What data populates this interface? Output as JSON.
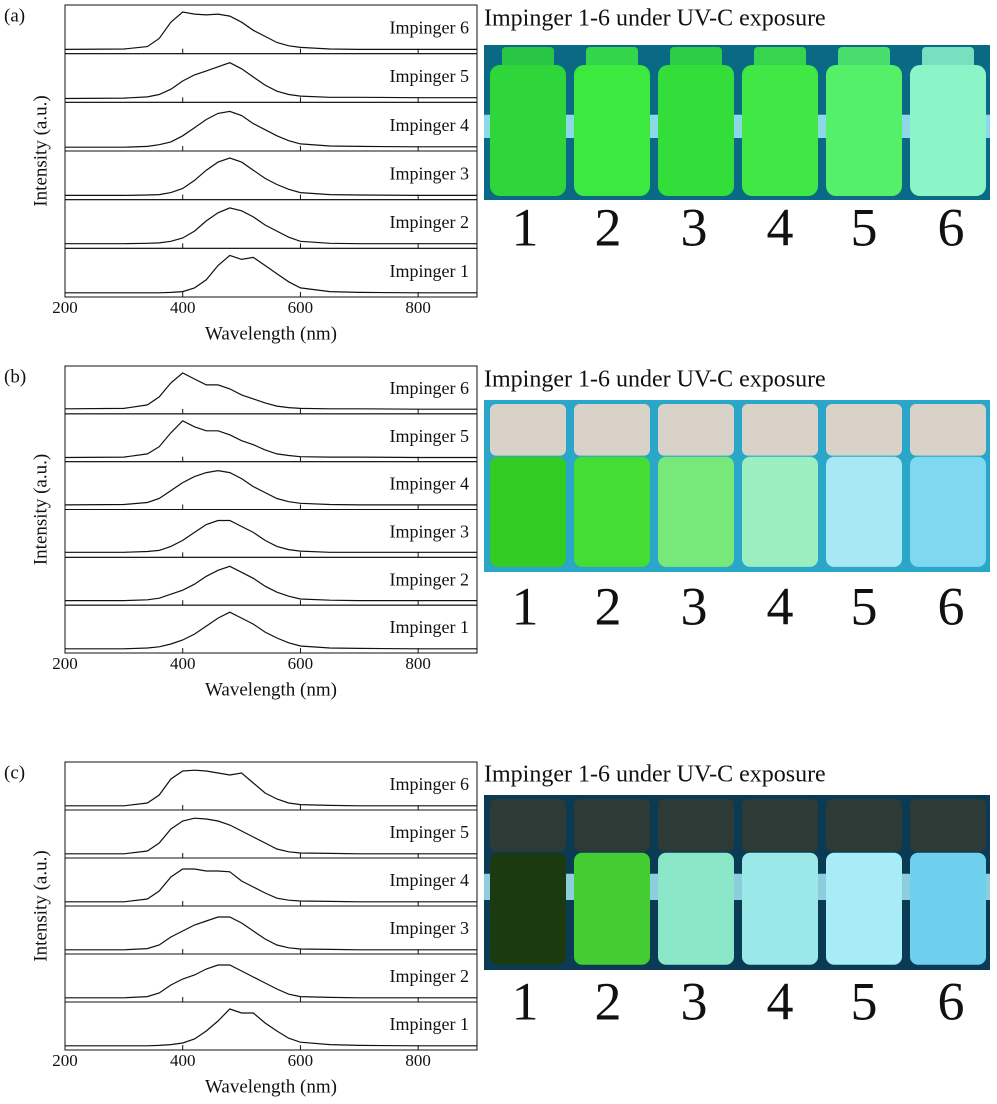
{
  "chart_data": [
    {
      "type": "line",
      "panel_label": "(a)",
      "xlabel": "Wavelength (nm)",
      "ylabel": "Intensity (a.u.)",
      "xlim": [
        200,
        900
      ],
      "xticks": [
        200,
        400,
        600,
        800
      ],
      "ylim": [
        0,
        1
      ],
      "x": [
        200,
        300,
        340,
        360,
        380,
        400,
        420,
        440,
        460,
        480,
        500,
        520,
        540,
        560,
        580,
        600,
        650,
        700,
        800,
        900
      ],
      "series": [
        {
          "name": "Impinger 1",
          "color": "#111111",
          "values": [
            0.03,
            0.03,
            0.03,
            0.03,
            0.04,
            0.06,
            0.15,
            0.35,
            0.7,
            0.95,
            0.85,
            0.9,
            0.7,
            0.5,
            0.3,
            0.15,
            0.06,
            0.04,
            0.03,
            0.03
          ]
        },
        {
          "name": "Impinger 2",
          "color": "#111111",
          "values": [
            0.04,
            0.04,
            0.05,
            0.06,
            0.1,
            0.18,
            0.35,
            0.6,
            0.8,
            0.92,
            0.85,
            0.7,
            0.5,
            0.35,
            0.2,
            0.1,
            0.05,
            0.04,
            0.04,
            0.04
          ]
        },
        {
          "name": "Impinger 3",
          "color": "#111111",
          "values": [
            0.03,
            0.03,
            0.04,
            0.05,
            0.1,
            0.2,
            0.4,
            0.65,
            0.85,
            0.95,
            0.85,
            0.65,
            0.45,
            0.3,
            0.18,
            0.1,
            0.05,
            0.04,
            0.03,
            0.03
          ]
        },
        {
          "name": "Impinger 4",
          "color": "#111111",
          "values": [
            0.02,
            0.02,
            0.04,
            0.08,
            0.15,
            0.3,
            0.5,
            0.7,
            0.85,
            0.9,
            0.8,
            0.6,
            0.45,
            0.3,
            0.18,
            0.1,
            0.05,
            0.04,
            0.03,
            0.03
          ]
        },
        {
          "name": "Impinger 5",
          "color": "#111111",
          "values": [
            0.02,
            0.03,
            0.06,
            0.12,
            0.25,
            0.45,
            0.6,
            0.7,
            0.8,
            0.9,
            0.75,
            0.55,
            0.35,
            0.2,
            0.12,
            0.08,
            0.05,
            0.05,
            0.04,
            0.04
          ]
        },
        {
          "name": "Impinger 6",
          "color": "#111111",
          "values": [
            0.03,
            0.04,
            0.1,
            0.3,
            0.7,
            0.95,
            0.9,
            0.88,
            0.9,
            0.85,
            0.7,
            0.5,
            0.35,
            0.2,
            0.12,
            0.08,
            0.04,
            0.03,
            0.03,
            0.03
          ]
        }
      ],
      "photo_title": "Impinger 1-6 under UV-C exposure",
      "photo_labels": [
        "1",
        "2",
        "3",
        "4",
        "5",
        "6"
      ]
    },
    {
      "type": "line",
      "panel_label": "(b)",
      "xlabel": "Wavelength (nm)",
      "ylabel": "Intensity (a.u.)",
      "xlim": [
        200,
        900
      ],
      "xticks": [
        200,
        400,
        600,
        800
      ],
      "ylim": [
        0,
        1
      ],
      "x": [
        200,
        300,
        340,
        360,
        380,
        400,
        420,
        440,
        460,
        480,
        500,
        520,
        540,
        560,
        580,
        600,
        650,
        700,
        800,
        900
      ],
      "series": [
        {
          "name": "Impinger 1",
          "color": "#111111",
          "values": [
            0.03,
            0.03,
            0.05,
            0.08,
            0.15,
            0.25,
            0.4,
            0.6,
            0.8,
            0.95,
            0.8,
            0.65,
            0.45,
            0.3,
            0.18,
            0.1,
            0.05,
            0.04,
            0.03,
            0.03
          ]
        },
        {
          "name": "Impinger 2",
          "color": "#111111",
          "values": [
            0.04,
            0.04,
            0.06,
            0.1,
            0.2,
            0.3,
            0.45,
            0.65,
            0.8,
            0.9,
            0.75,
            0.6,
            0.4,
            0.25,
            0.15,
            0.08,
            0.05,
            0.04,
            0.04,
            0.04
          ]
        },
        {
          "name": "Impinger 3",
          "color": "#111111",
          "values": [
            0.05,
            0.05,
            0.07,
            0.1,
            0.2,
            0.35,
            0.55,
            0.75,
            0.85,
            0.85,
            0.7,
            0.55,
            0.35,
            0.2,
            0.12,
            0.08,
            0.05,
            0.05,
            0.05,
            0.05
          ]
        },
        {
          "name": "Impinger 4",
          "color": "#111111",
          "values": [
            0.04,
            0.05,
            0.1,
            0.2,
            0.4,
            0.6,
            0.75,
            0.85,
            0.9,
            0.85,
            0.7,
            0.5,
            0.35,
            0.2,
            0.12,
            0.08,
            0.05,
            0.04,
            0.04,
            0.04
          ]
        },
        {
          "name": "Impinger 5",
          "color": "#111111",
          "values": [
            0.03,
            0.04,
            0.12,
            0.3,
            0.65,
            0.95,
            0.8,
            0.7,
            0.7,
            0.6,
            0.45,
            0.35,
            0.22,
            0.12,
            0.08,
            0.05,
            0.04,
            0.04,
            0.03,
            0.03
          ]
        },
        {
          "name": "Impinger 6",
          "color": "#111111",
          "values": [
            0.05,
            0.06,
            0.15,
            0.35,
            0.7,
            0.95,
            0.8,
            0.65,
            0.65,
            0.55,
            0.4,
            0.3,
            0.2,
            0.12,
            0.08,
            0.06,
            0.05,
            0.05,
            0.04,
            0.04
          ]
        }
      ],
      "photo_title": "Impinger 1-6 under UV-C exposure",
      "photo_labels": [
        "1",
        "2",
        "3",
        "4",
        "5",
        "6"
      ]
    },
    {
      "type": "line",
      "panel_label": "(c)",
      "xlabel": "Wavelength (nm)",
      "ylabel": "Intensity (a.u.)",
      "xlim": [
        200,
        900
      ],
      "xticks": [
        200,
        400,
        600,
        800
      ],
      "ylim": [
        0,
        1
      ],
      "x": [
        200,
        300,
        340,
        360,
        380,
        400,
        420,
        440,
        460,
        480,
        500,
        520,
        540,
        560,
        580,
        600,
        650,
        700,
        800,
        900
      ],
      "series": [
        {
          "name": "Impinger 1",
          "color": "#111111",
          "values": [
            0.03,
            0.03,
            0.03,
            0.04,
            0.06,
            0.1,
            0.2,
            0.4,
            0.65,
            0.95,
            0.85,
            0.85,
            0.6,
            0.4,
            0.22,
            0.12,
            0.06,
            0.04,
            0.03,
            0.03
          ]
        },
        {
          "name": "Impinger 2",
          "color": "#111111",
          "values": [
            0.03,
            0.03,
            0.06,
            0.15,
            0.35,
            0.5,
            0.6,
            0.75,
            0.85,
            0.85,
            0.7,
            0.55,
            0.4,
            0.25,
            0.12,
            0.06,
            0.04,
            0.03,
            0.03,
            0.03
          ]
        },
        {
          "name": "Impinger 3",
          "color": "#111111",
          "values": [
            0.03,
            0.03,
            0.06,
            0.15,
            0.35,
            0.5,
            0.65,
            0.75,
            0.85,
            0.85,
            0.7,
            0.5,
            0.3,
            0.15,
            0.08,
            0.05,
            0.04,
            0.03,
            0.03,
            0.03
          ]
        },
        {
          "name": "Impinger 4",
          "color": "#111111",
          "values": [
            0.03,
            0.03,
            0.1,
            0.3,
            0.65,
            0.85,
            0.85,
            0.8,
            0.8,
            0.78,
            0.55,
            0.4,
            0.25,
            0.12,
            0.07,
            0.05,
            0.04,
            0.03,
            0.03,
            0.03
          ]
        },
        {
          "name": "Impinger 5",
          "color": "#111111",
          "values": [
            0.03,
            0.03,
            0.1,
            0.3,
            0.65,
            0.85,
            0.92,
            0.9,
            0.85,
            0.75,
            0.6,
            0.45,
            0.3,
            0.15,
            0.08,
            0.05,
            0.04,
            0.03,
            0.03,
            0.03
          ]
        },
        {
          "name": "Impinger 6",
          "color": "#111111",
          "values": [
            0.03,
            0.03,
            0.1,
            0.3,
            0.7,
            0.9,
            0.92,
            0.9,
            0.85,
            0.8,
            0.85,
            0.6,
            0.35,
            0.2,
            0.1,
            0.06,
            0.04,
            0.03,
            0.03,
            0.03
          ]
        }
      ],
      "photo_title": "Impinger 1-6 under UV-C exposure",
      "photo_labels": [
        "1",
        "2",
        "3",
        "4",
        "5",
        "6"
      ]
    }
  ]
}
